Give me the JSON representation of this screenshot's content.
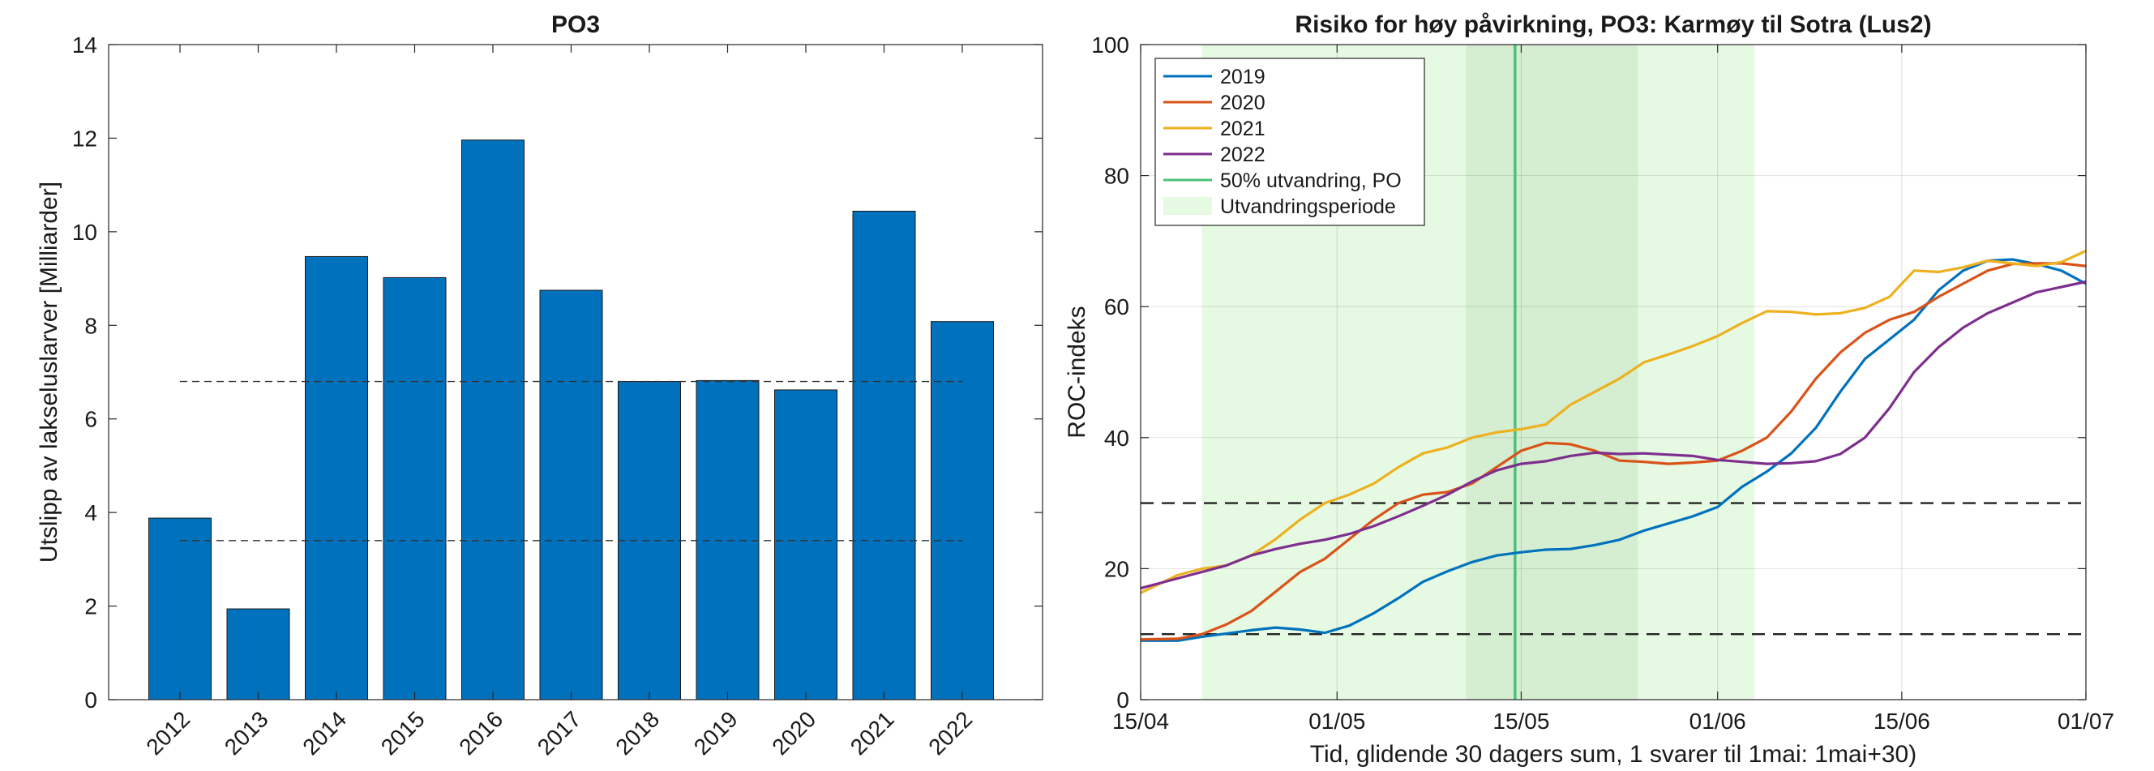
{
  "chart_data": [
    {
      "type": "bar",
      "title": "PO3",
      "xlabel": "",
      "ylabel": "Utslipp av lakseluslarver [Milliarder]",
      "categories": [
        "2012",
        "2013",
        "2014",
        "2015",
        "2016",
        "2017",
        "2018",
        "2019",
        "2020",
        "2021",
        "2022"
      ],
      "values": [
        3.88,
        1.94,
        9.47,
        9.02,
        11.96,
        8.75,
        6.8,
        6.82,
        6.62,
        10.44,
        8.08
      ],
      "ylim": [
        0,
        14
      ],
      "yticks": [
        0,
        2,
        4,
        6,
        8,
        10,
        12,
        14
      ],
      "ytick_labels": [
        "0",
        "2",
        "4",
        "6",
        "8",
        "10",
        "12",
        "14"
      ],
      "reference_lines": [
        6.8,
        3.4
      ],
      "bar_color": "#0072BD"
    },
    {
      "type": "line",
      "title": "Risiko for høy påvirkning, PO3: Karmøy til Sotra (Lus2)",
      "xlabel": "Tid, glidende 30 dagers sum, 1 svarer til 1mai: 1mai+30)",
      "ylabel": "ROC-indeks",
      "xlim_days": [
        0,
        77
      ],
      "xticks": [
        0,
        16,
        31,
        47,
        62,
        77
      ],
      "xtick_labels": [
        "15/04",
        "01/05",
        "15/05",
        "01/06",
        "15/06",
        "01/07"
      ],
      "ylim": [
        0,
        100
      ],
      "yticks": [
        0,
        20,
        40,
        60,
        80,
        100
      ],
      "ytick_labels": [
        "0",
        "20",
        "40",
        "60",
        "80",
        "100"
      ],
      "grid": true,
      "legend_position": "top-left",
      "reference_lines": [
        30,
        10
      ],
      "vertical_line_day": 30.5,
      "migration_period_days": [
        5,
        50
      ],
      "core_period_days": [
        26.5,
        40.5
      ],
      "series": [
        {
          "name": "2019",
          "color": "#0072BD",
          "x": [
            0,
            3,
            5,
            7,
            9,
            11,
            13,
            15,
            17,
            19,
            21,
            23,
            25,
            27,
            29,
            31,
            33,
            35,
            37,
            39,
            41,
            43,
            45,
            47,
            49,
            51,
            53,
            55,
            57,
            59,
            61,
            63,
            65,
            67,
            69,
            71,
            73,
            75,
            77
          ],
          "values": [
            9,
            9,
            9.6,
            10.1,
            10.6,
            11,
            10.7,
            10.2,
            11.3,
            13.2,
            15.5,
            18,
            19.6,
            21,
            22,
            22.5,
            22.9,
            23,
            23.6,
            24.4,
            25.8,
            26.9,
            28,
            29.4,
            32.5,
            34.8,
            37.6,
            41.5,
            47,
            52,
            55,
            58,
            62.5,
            65.5,
            67,
            67.2,
            66.5,
            65.5,
            63.5
          ]
        },
        {
          "name": "2020",
          "color": "#D95319",
          "x": [
            0,
            3,
            5,
            7,
            9,
            11,
            13,
            15,
            17,
            19,
            21,
            23,
            25,
            27,
            29,
            31,
            33,
            35,
            37,
            39,
            41,
            43,
            45,
            47,
            49,
            51,
            53,
            55,
            57,
            59,
            61,
            63,
            65,
            67,
            69,
            71,
            73,
            75,
            77
          ],
          "values": [
            9.2,
            9.3,
            10,
            11.5,
            13.5,
            16.5,
            19.5,
            21.5,
            24.5,
            27.5,
            30,
            31.3,
            31.7,
            33,
            35.5,
            38,
            39.2,
            39,
            38,
            36.5,
            36.3,
            36,
            36.2,
            36.5,
            38,
            40,
            44,
            49,
            53,
            56,
            58,
            59.2,
            61.5,
            63.5,
            65.5,
            66.5,
            66.6,
            66.6,
            66.2
          ]
        },
        {
          "name": "2021",
          "color": "#EDB120",
          "x": [
            0,
            3,
            5,
            7,
            9,
            11,
            13,
            15,
            17,
            19,
            21,
            23,
            25,
            27,
            29,
            31,
            33,
            35,
            37,
            39,
            41,
            43,
            45,
            47,
            49,
            51,
            53,
            55,
            57,
            59,
            61,
            63,
            65,
            67,
            69,
            71,
            73,
            75,
            77
          ],
          "values": [
            16.3,
            19,
            20,
            20.5,
            22,
            24.5,
            27.5,
            30,
            31.3,
            33,
            35.5,
            37.6,
            38.5,
            40,
            40.8,
            41.3,
            42,
            45,
            47,
            49,
            51.5,
            52.7,
            54,
            55.5,
            57.5,
            59.3,
            59.2,
            58.8,
            59,
            59.8,
            61.5,
            65.5,
            65.3,
            66,
            67,
            66.6,
            66.2,
            66.8,
            68.5
          ]
        },
        {
          "name": "2022",
          "color": "#7E2F8E",
          "x": [
            0,
            3,
            5,
            7,
            9,
            11,
            13,
            15,
            17,
            19,
            21,
            23,
            25,
            27,
            29,
            31,
            33,
            35,
            37,
            39,
            41,
            43,
            45,
            47,
            49,
            51,
            53,
            55,
            57,
            59,
            61,
            63,
            65,
            67,
            69,
            71,
            73,
            75,
            77
          ],
          "values": [
            17,
            18.5,
            19.5,
            20.5,
            22,
            23,
            23.8,
            24.4,
            25.3,
            26.5,
            28,
            29.6,
            31.3,
            33.3,
            35,
            36,
            36.4,
            37.2,
            37.7,
            37.5,
            37.6,
            37.4,
            37.2,
            36.6,
            36.3,
            36,
            36.1,
            36.4,
            37.5,
            40,
            44.5,
            50,
            53.8,
            56.8,
            59,
            60.6,
            62.2,
            63,
            63.8
          ]
        }
      ],
      "legend_entries": [
        "2019",
        "2020",
        "2021",
        "2022",
        "50% utvandring, PO",
        "Utvandringsperiode"
      ],
      "colors": {
        "vertical_line": "#4CC17A",
        "migration_fill": "#E6F9E2",
        "core_fill": "#D5EDD1"
      }
    }
  ]
}
